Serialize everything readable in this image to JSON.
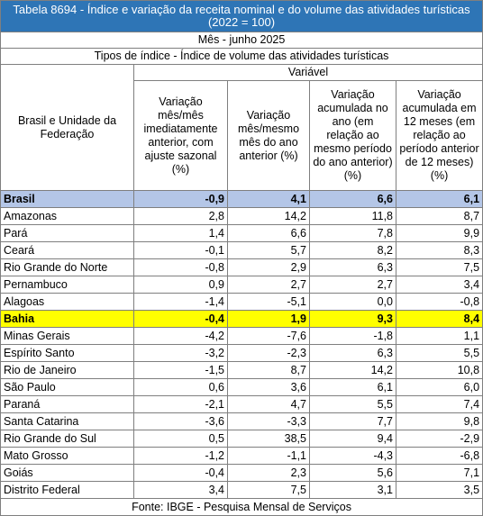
{
  "title": "Tabela 8694 - Índice e variação da receita nominal e do volume das atividades turísticas (2022 = 100)",
  "period": "Mês - junho 2025",
  "index_type": "Tipos de índice - Índice de volume das atividades turísticas",
  "variable_label": "Variável",
  "region_header": "Brasil e Unidade da Federação",
  "columns": [
    "Variação mês/mês imediatamente anterior, com ajuste sazonal (%)",
    "Variação mês/mesmo mês do ano anterior (%)",
    "Variação acumulada no ano (em relação ao mesmo período do ano anterior) (%)",
    "Variação acumulada em 12 meses (em relação ao período anterior de 12 meses) (%)"
  ],
  "rows": [
    {
      "name": "Brasil",
      "values": [
        "-0,9",
        "4,1",
        "6,6",
        "6,1"
      ]
    },
    {
      "name": "Amazonas",
      "values": [
        "2,8",
        "14,2",
        "11,8",
        "8,7"
      ]
    },
    {
      "name": "Pará",
      "values": [
        "1,4",
        "6,6",
        "7,8",
        "9,9"
      ]
    },
    {
      "name": "Ceará",
      "values": [
        "-0,1",
        "5,7",
        "8,2",
        "8,3"
      ]
    },
    {
      "name": "Rio Grande do Norte",
      "values": [
        "-0,8",
        "2,9",
        "6,3",
        "7,5"
      ]
    },
    {
      "name": "Pernambuco",
      "values": [
        "0,9",
        "2,7",
        "2,7",
        "3,4"
      ]
    },
    {
      "name": "Alagoas",
      "values": [
        "-1,4",
        "-5,1",
        "0,0",
        "-0,8"
      ]
    },
    {
      "name": "Bahia",
      "values": [
        "-0,4",
        "1,9",
        "9,3",
        "8,4"
      ]
    },
    {
      "name": "Minas Gerais",
      "values": [
        "-4,2",
        "-7,6",
        "-1,8",
        "1,1"
      ]
    },
    {
      "name": "Espírito Santo",
      "values": [
        "-3,2",
        "-2,3",
        "6,3",
        "5,5"
      ]
    },
    {
      "name": "Rio de Janeiro",
      "values": [
        "-1,5",
        "8,7",
        "14,2",
        "10,8"
      ]
    },
    {
      "name": "São Paulo",
      "values": [
        "0,6",
        "3,6",
        "6,1",
        "6,0"
      ]
    },
    {
      "name": "Paraná",
      "values": [
        "-2,1",
        "4,7",
        "5,5",
        "7,4"
      ]
    },
    {
      "name": "Santa Catarina",
      "values": [
        "-3,6",
        "-3,3",
        "7,7",
        "9,8"
      ]
    },
    {
      "name": "Rio Grande do Sul",
      "values": [
        "0,5",
        "38,5",
        "9,4",
        "-2,9"
      ]
    },
    {
      "name": "Mato Grosso",
      "values": [
        "-1,2",
        "-1,1",
        "-4,3",
        "-6,8"
      ]
    },
    {
      "name": "Goiás",
      "values": [
        "-0,4",
        "2,3",
        "5,6",
        "7,1"
      ]
    },
    {
      "name": "Distrito Federal",
      "values": [
        "3,4",
        "7,5",
        "3,1",
        "3,5"
      ]
    }
  ],
  "highlight_colors": {
    "brasil": "#b4c6e7",
    "bahia": "#ffff00",
    "title_bg": "#2e75b6"
  },
  "source": "Fonte: IBGE - Pesquisa Mensal de Serviços"
}
